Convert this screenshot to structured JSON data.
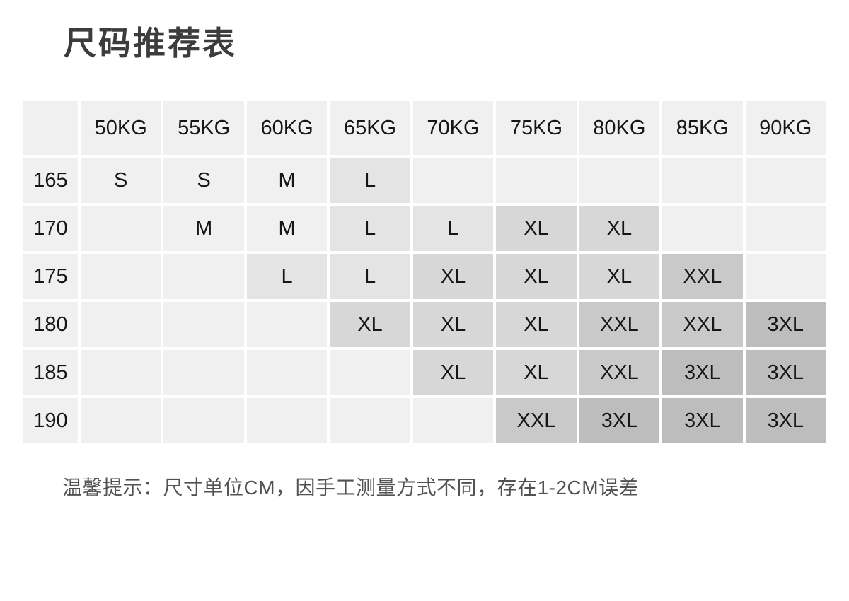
{
  "title": "尺码推荐表",
  "note": "温馨提示：尺寸单位CM，因手工测量方式不同，存在1-2CM误差",
  "size_chart": {
    "corner_label": "",
    "weight_headers": [
      "50KG",
      "55KG",
      "60KG",
      "65KG",
      "70KG",
      "75KG",
      "80KG",
      "85KG",
      "90KG"
    ],
    "rows": [
      {
        "height": "165",
        "sizes": [
          "S",
          "S",
          "M",
          "L",
          "",
          "",
          "",
          "",
          ""
        ]
      },
      {
        "height": "170",
        "sizes": [
          "",
          "M",
          "M",
          "L",
          "L",
          "XL",
          "XL",
          "",
          ""
        ]
      },
      {
        "height": "175",
        "sizes": [
          "",
          "",
          "L",
          "L",
          "XL",
          "XL",
          "XL",
          "XXL",
          ""
        ]
      },
      {
        "height": "180",
        "sizes": [
          "",
          "",
          "",
          "XL",
          "XL",
          "XL",
          "XXL",
          "XXL",
          "3XL"
        ]
      },
      {
        "height": "185",
        "sizes": [
          "",
          "",
          "",
          "",
          "XL",
          "XL",
          "XXL",
          "3XL",
          "3XL"
        ]
      },
      {
        "height": "190",
        "sizes": [
          "",
          "",
          "",
          "",
          "",
          "XXL",
          "3XL",
          "3XL",
          "3XL"
        ]
      }
    ],
    "cell_colors": {
      "base": "#f0f0f0",
      "S": "#f0f0f0",
      "M": "#f0f0f0",
      "L": "#e4e4e4",
      "XL": "#d7d7d7",
      "XXL": "#c9c9c9",
      "3XL": "#bdbdbd"
    },
    "gap_color": "#ffffff",
    "text_color": "#161616"
  },
  "chart_data": {
    "type": "table",
    "title": "尺码推荐表",
    "columns": [
      "",
      "50KG",
      "55KG",
      "60KG",
      "65KG",
      "70KG",
      "75KG",
      "80KG",
      "85KG",
      "90KG"
    ],
    "rows": [
      [
        "165",
        "S",
        "S",
        "M",
        "L",
        "",
        "",
        "",
        "",
        ""
      ],
      [
        "170",
        "",
        "M",
        "M",
        "L",
        "L",
        "XL",
        "XL",
        "",
        ""
      ],
      [
        "175",
        "",
        "",
        "L",
        "L",
        "XL",
        "XL",
        "XL",
        "XXL",
        ""
      ],
      [
        "180",
        "",
        "",
        "",
        "XL",
        "XL",
        "XL",
        "XXL",
        "XXL",
        "3XL"
      ],
      [
        "185",
        "",
        "",
        "",
        "",
        "XL",
        "XL",
        "XXL",
        "3XL",
        "3XL"
      ],
      [
        "190",
        "",
        "",
        "",
        "",
        "",
        "XXL",
        "3XL",
        "3XL",
        "3XL"
      ]
    ],
    "note": "温馨提示：尺寸单位CM，因手工测量方式不同，存在1-2CM误差",
    "legend_position": "none",
    "grid": "white-gap-cells",
    "shading_rule": "cell background darkens as size increases (S/M base, L, XL, XXL, 3XL darkest)"
  }
}
